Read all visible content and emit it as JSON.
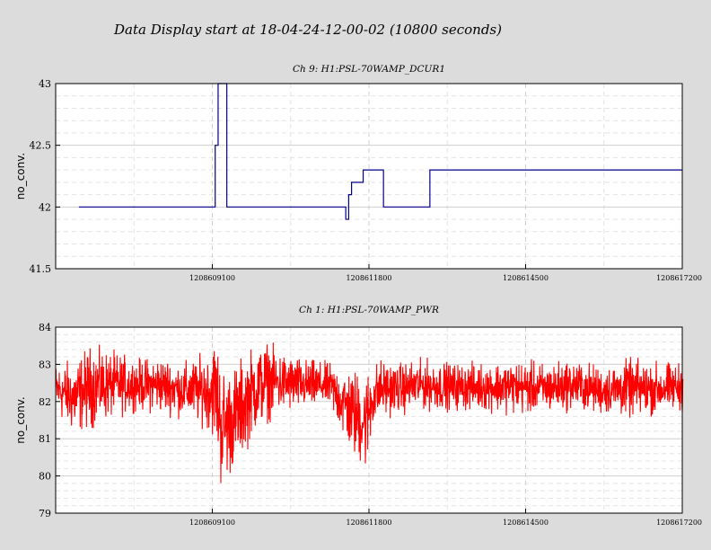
{
  "page_title": "Data Display start at 18-04-24-12-00-02 (10800 seconds)",
  "colors": {
    "background": "#dcdcdc",
    "panel": "#ffffff",
    "grid": "#cfcfcf",
    "ch9_line": "#00008b",
    "ch1_line": "#ff0000"
  },
  "chart_data": [
    {
      "type": "line",
      "title": "Ch 9: H1:PSL-70WAMP_DCUR1",
      "xlabel": "",
      "ylabel": "no_conv.",
      "xlim": [
        1208606400,
        1208617200
      ],
      "ylim": [
        41.5,
        43
      ],
      "x_ticks": [
        1208609100,
        1208611800,
        1208614500,
        1208617200
      ],
      "x_tick_labels": [
        "1208609100",
        "1208611800",
        "1208614500",
        "1208617200"
      ],
      "y_ticks": [
        41.5,
        42,
        42.5,
        43
      ],
      "y_tick_labels": [
        "41.5",
        "42",
        "42.5",
        "43"
      ],
      "grid": true,
      "series": [
        {
          "color": "#00008b",
          "step": true,
          "x": [
            1208606800,
            1208609100,
            1208609150,
            1208609200,
            1208609350,
            1208611400,
            1208611450,
            1208611500,
            1208611700,
            1208611950,
            1208612050,
            1208612700,
            1208612750,
            1208612850,
            1208616950,
            1208617200
          ],
          "y": [
            42.0,
            42.0,
            42.5,
            43.0,
            42.0,
            41.9,
            42.1,
            42.2,
            42.3,
            42.3,
            42.0,
            42.0,
            42.0,
            42.3,
            42.3,
            42.3
          ]
        }
      ]
    },
    {
      "type": "line",
      "title": "Ch 1: H1:PSL-70WAMP_PWR",
      "xlabel": "",
      "ylabel": "no_conv.",
      "xlim": [
        1208606400,
        1208617200
      ],
      "ylim": [
        79,
        84
      ],
      "x_ticks": [
        1208609100,
        1208611800,
        1208614500,
        1208617200
      ],
      "x_tick_labels": [
        "1208609100",
        "1208611800",
        "1208614500",
        "1208617200"
      ],
      "y_ticks": [
        79,
        80,
        81,
        82,
        83,
        84
      ],
      "y_tick_labels": [
        "79",
        "80",
        "81",
        "82",
        "83",
        "84"
      ],
      "grid": true,
      "series": [
        {
          "color": "#ff0000",
          "envelope_x": [
            1208606400,
            1208606700,
            1208607000,
            1208607400,
            1208607800,
            1208608200,
            1208608600,
            1208609000,
            1208609150,
            1208609250,
            1208609350,
            1208609550,
            1208609800,
            1208610050,
            1208610300,
            1208610700,
            1208611100,
            1208611500,
            1208611750,
            1208611850,
            1208612000,
            1208612300,
            1208612700,
            1208613200,
            1208613700,
            1208614300,
            1208614800,
            1208615300,
            1208615800,
            1208616300,
            1208616800,
            1208617200
          ],
          "envelope_low": [
            81.6,
            81.0,
            81.2,
            81.5,
            81.7,
            81.6,
            81.5,
            81.2,
            80.8,
            79.5,
            79.8,
            80.2,
            81.0,
            81.4,
            81.6,
            81.7,
            81.8,
            80.4,
            80.0,
            81.1,
            81.5,
            81.6,
            81.7,
            81.7,
            81.7,
            81.6,
            81.6,
            81.7,
            81.6,
            81.5,
            81.6,
            81.7
          ],
          "envelope_high": [
            83.1,
            83.2,
            83.6,
            83.4,
            83.2,
            83.3,
            83.1,
            83.4,
            83.9,
            83.2,
            83.0,
            83.2,
            83.6,
            83.7,
            83.4,
            83.2,
            83.1,
            83.0,
            82.9,
            83.1,
            83.2,
            83.1,
            83.2,
            83.1,
            83.1,
            83.2,
            83.1,
            83.2,
            83.0,
            83.2,
            83.1,
            83.1
          ]
        }
      ]
    }
  ]
}
